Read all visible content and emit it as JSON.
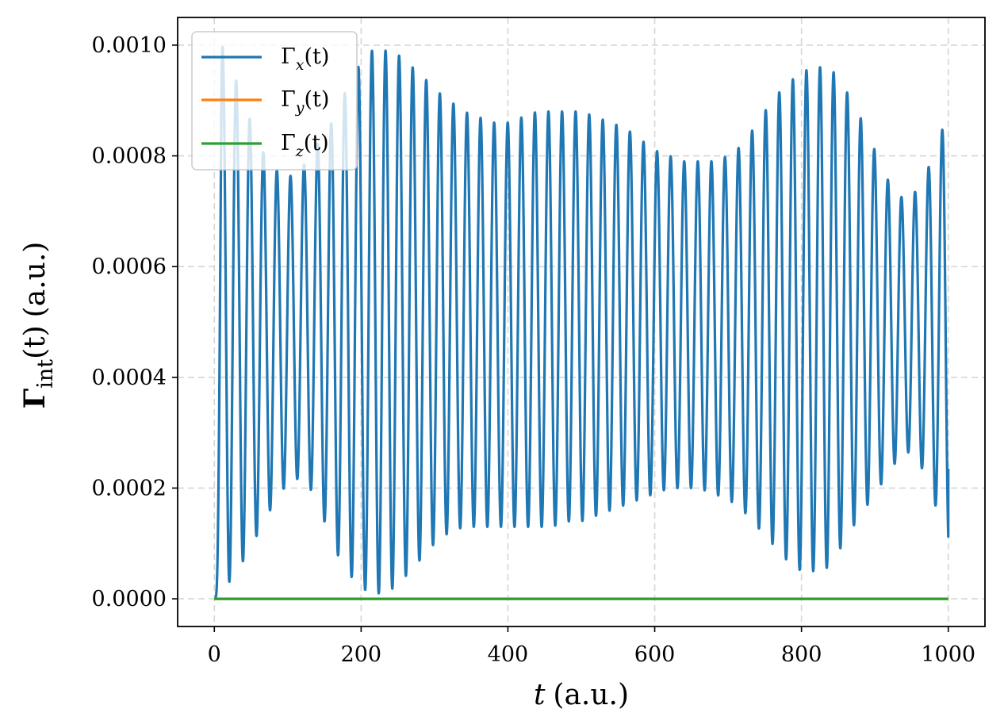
{
  "chart_data": {
    "type": "line",
    "title": "",
    "xlabel": "t",
    "xlabel_unit": "(a.u.)",
    "ylabel": "Γ",
    "ylabel_sub": "int",
    "ylabel_arg": "(t)",
    "ylabel_unit": "(a.u.)",
    "xlim": [
      -50,
      1050
    ],
    "ylim": [
      -5e-05,
      0.00105
    ],
    "xticks": [
      0,
      200,
      400,
      600,
      800,
      1000
    ],
    "xtick_labels": [
      "0",
      "200",
      "400",
      "600",
      "800",
      "1000"
    ],
    "yticks": [
      0,
      0.0002,
      0.0004,
      0.0006,
      0.0008,
      0.001
    ],
    "ytick_labels": [
      "0.0000",
      "0.0002",
      "0.0004",
      "0.0006",
      "0.0008",
      "0.0010"
    ],
    "grid": true,
    "legend_position": "top-left",
    "x_range": [
      0,
      1000
    ],
    "oscillation_period": 18.5,
    "series": [
      {
        "name": "Γ",
        "name_sub": "x",
        "name_arg": "(t)",
        "color": "#1f77b4",
        "envelope_t": [
          0,
          10,
          20,
          40,
          60,
          80,
          100,
          120,
          140,
          160,
          180,
          200,
          215,
          230,
          245,
          260,
          280,
          300,
          320,
          340,
          360,
          380,
          400,
          420,
          440,
          460,
          480,
          500,
          520,
          540,
          560,
          580,
          600,
          620,
          640,
          660,
          680,
          700,
          720,
          740,
          760,
          780,
          800,
          815,
          830,
          845,
          860,
          880,
          900,
          920,
          940,
          960,
          980,
          1000
        ],
        "envelope_max": [
          2e-05,
          0.001,
          0.00097,
          0.0009,
          0.00082,
          0.00078,
          0.00076,
          0.00078,
          0.00082,
          0.00086,
          0.00092,
          0.00097,
          0.00099,
          0.00099,
          0.00099,
          0.00097,
          0.00095,
          0.00092,
          0.0009,
          0.00088,
          0.00087,
          0.00086,
          0.00086,
          0.00087,
          0.00088,
          0.00088,
          0.00088,
          0.00088,
          0.00087,
          0.00086,
          0.00085,
          0.00083,
          0.00081,
          0.0008,
          0.00079,
          0.00079,
          0.00079,
          0.0008,
          0.00082,
          0.00086,
          0.0009,
          0.00093,
          0.00095,
          0.00096,
          0.00096,
          0.00095,
          0.00092,
          0.00087,
          0.00081,
          0.00075,
          0.00072,
          0.00074,
          0.0008,
          0.00088
        ],
        "envelope_min": [
          0.0,
          2e-05,
          3e-05,
          7e-05,
          0.00012,
          0.00017,
          0.00021,
          0.00022,
          0.00018,
          0.0001,
          5e-05,
          2e-05,
          1e-05,
          1e-05,
          2e-05,
          4e-05,
          7e-05,
          0.0001,
          0.00012,
          0.00013,
          0.00013,
          0.00013,
          0.00013,
          0.00013,
          0.00013,
          0.00013,
          0.00014,
          0.00014,
          0.00015,
          0.00016,
          0.00017,
          0.00018,
          0.00019,
          0.0002,
          0.0002,
          0.0002,
          0.00019,
          0.00018,
          0.00016,
          0.00013,
          0.0001,
          7e-05,
          5e-05,
          5e-05,
          5e-05,
          7e-05,
          0.00011,
          0.00015,
          0.00019,
          0.00023,
          0.00027,
          0.00025,
          0.00018,
          9e-05
        ],
        "end_value": 0.000235
      },
      {
        "name": "Γ",
        "name_sub": "y",
        "name_arg": "(t)",
        "color": "#ff7f0e",
        "x": [
          0,
          1000
        ],
        "y": [
          0,
          0
        ]
      },
      {
        "name": "Γ",
        "name_sub": "z",
        "name_arg": "(t)",
        "color": "#2ca02c",
        "x": [
          0,
          1000
        ],
        "y": [
          0,
          0
        ]
      }
    ]
  }
}
